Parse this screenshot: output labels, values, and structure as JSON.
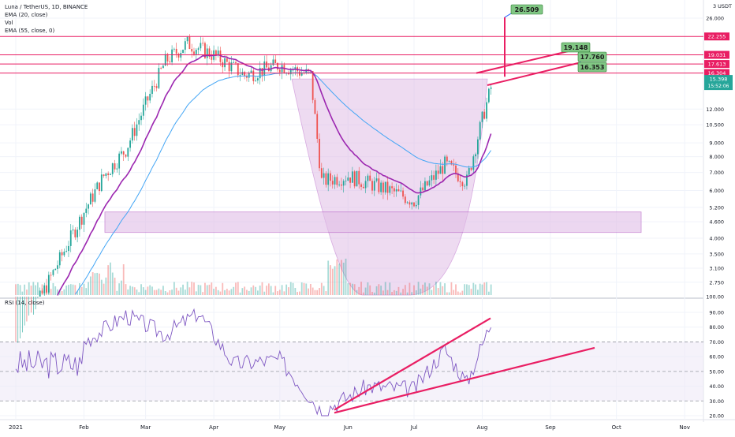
{
  "legend": {
    "symbol": "Luna / TetherUS, 1D, BINANCE",
    "ema20": "EMA (20, close)",
    "vol": "Vol",
    "ema55": "EMA (55, close, 0)",
    "rsi": "RSI (14, close)"
  },
  "colors": {
    "bull": "#26a69a",
    "bear": "#ef5350",
    "accent": "#e91e63",
    "ema20": "#9c27b0",
    "ema55": "#42a5f5",
    "rsi_line": "#7e57c2",
    "zone_fill": "#e1bee7",
    "tag_green": "#81c784"
  },
  "price_axis": {
    "unit": "3 USDT",
    "ticks": [
      "26.000",
      "12.000",
      "10.500",
      "9.000",
      "8.000",
      "7.000",
      "6.000",
      "5.200",
      "4.600",
      "4.000",
      "3.500",
      "3.100",
      "2.750",
      "100.00"
    ]
  },
  "price_levels": [
    {
      "label": "22.255",
      "value": 22.255
    },
    {
      "label": "19.031",
      "value": 19.031
    },
    {
      "label": "17.613",
      "value": 17.613
    },
    {
      "label": "16.304",
      "value": 16.304
    }
  ],
  "current_price": {
    "label": "15.398",
    "timer": "15:52:06"
  },
  "target_tags": [
    "26.509",
    "19.148",
    "17.760",
    "16.353"
  ],
  "rsi_axis": {
    "ticks": [
      "90.00",
      "80.00",
      "70.00",
      "60.00",
      "50.00",
      "40.00",
      "30.00",
      "20.00"
    ]
  },
  "time_axis": {
    "labels": [
      "2021",
      "Feb",
      "Mar",
      "Apr",
      "May",
      "Jun",
      "Jul",
      "Aug",
      "Sep",
      "Oct",
      "Nov"
    ]
  },
  "chart_data": {
    "type": "candlestick",
    "series": [
      {
        "name": "Luna / TetherUS",
        "close_points": [
          {
            "x": "2021-02-01",
            "y": 5.0
          },
          {
            "x": "2021-02-10",
            "y": 6.8
          },
          {
            "x": "2021-02-20",
            "y": 8.5
          },
          {
            "x": "2021-03-01",
            "y": 12.5
          },
          {
            "x": "2021-03-10",
            "y": 18.0
          },
          {
            "x": "2021-03-20",
            "y": 21.0
          },
          {
            "x": "2021-04-01",
            "y": 19.0
          },
          {
            "x": "2021-04-15",
            "y": 16.0
          },
          {
            "x": "2021-05-01",
            "y": 17.5
          },
          {
            "x": "2021-05-15",
            "y": 16.0
          },
          {
            "x": "2021-05-20",
            "y": 6.5
          },
          {
            "x": "2021-06-01",
            "y": 6.8
          },
          {
            "x": "2021-06-20",
            "y": 6.0
          },
          {
            "x": "2021-07-01",
            "y": 5.5
          },
          {
            "x": "2021-07-15",
            "y": 7.5
          },
          {
            "x": "2021-07-25",
            "y": 6.5
          },
          {
            "x": "2021-08-01",
            "y": 11.0
          },
          {
            "x": "2021-08-06",
            "y": 15.398
          }
        ]
      },
      {
        "name": "EMA (20, close)",
        "values": "derived"
      },
      {
        "name": "EMA (55, close, 0)",
        "values": "derived"
      }
    ],
    "rsi_points": [
      {
        "x": "2021-02-01",
        "y": 70
      },
      {
        "x": "2021-02-20",
        "y": 88
      },
      {
        "x": "2021-03-10",
        "y": 75
      },
      {
        "x": "2021-03-25",
        "y": 90
      },
      {
        "x": "2021-04-10",
        "y": 55
      },
      {
        "x": "2021-05-01",
        "y": 58
      },
      {
        "x": "2021-05-20",
        "y": 23
      },
      {
        "x": "2021-06-10",
        "y": 40
      },
      {
        "x": "2021-07-01",
        "y": 38
      },
      {
        "x": "2021-07-15",
        "y": 65
      },
      {
        "x": "2021-07-25",
        "y": 42
      },
      {
        "x": "2021-08-05",
        "y": 83
      }
    ],
    "horizontal_levels": [
      22.255,
      19.031,
      17.613,
      16.304
    ],
    "support_zone": [
      4.2,
      5.0
    ],
    "ylim": [
      2.5,
      28
    ],
    "rsi_bands": [
      30,
      70
    ],
    "legend": "top-left"
  }
}
